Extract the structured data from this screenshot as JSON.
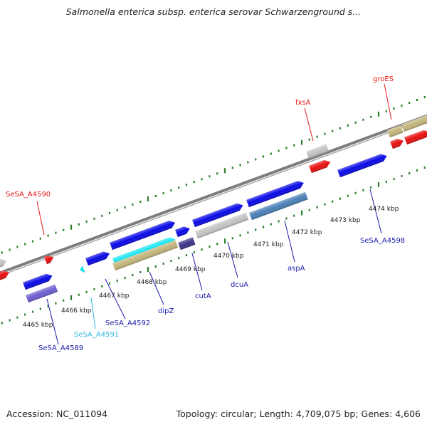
{
  "title": "Salmonella enterica subsp. enterica serovar Schwarzenground s...",
  "footer": {
    "accession": "Accession: NC_011094",
    "summary": "Topology: circular; Length: 4,709,075 bp; Genes: 4,606"
  },
  "colors": {
    "backbone": "#7d7d7d",
    "tick": "#2e7d2e",
    "gene_blue": "#0a0ae6",
    "gene_red": "#e61010",
    "gene_gray": "#c4c4c4",
    "gene_khaki": "#c3b57c",
    "gene_cyan": "#17e6f2",
    "gene_purple": "#6d5fd0",
    "gene_steel": "#4a7fb6",
    "gene_navy": "#3a3585",
    "label_red": "#e01818",
    "label_blue": "#1a1aa8",
    "label_cyan": "#2fb8e0"
  },
  "scale_labels": [
    "4465 kbp",
    "4466 kbp",
    "4467 kbp",
    "4468 kbp",
    "4469 kbp",
    "4470 kbp",
    "4471 kbp",
    "4472 kbp",
    "4473 kbp",
    "4474 kbp"
  ],
  "gene_labels": [
    {
      "text": "SeSA_A4590",
      "color": "red"
    },
    {
      "text": "fxsA",
      "color": "red"
    },
    {
      "text": "groES",
      "color": "red"
    },
    {
      "text": "SeSA_A4589",
      "color": "blue"
    },
    {
      "text": "SeSA_A4591",
      "color": "cyan"
    },
    {
      "text": "SeSA_A4592",
      "color": "blue"
    },
    {
      "text": "dipZ",
      "color": "blue"
    },
    {
      "text": "cutA",
      "color": "blue"
    },
    {
      "text": "dcuA",
      "color": "blue"
    },
    {
      "text": "aspA",
      "color": "blue"
    },
    {
      "text": "SeSA_A4598",
      "color": "blue"
    }
  ]
}
